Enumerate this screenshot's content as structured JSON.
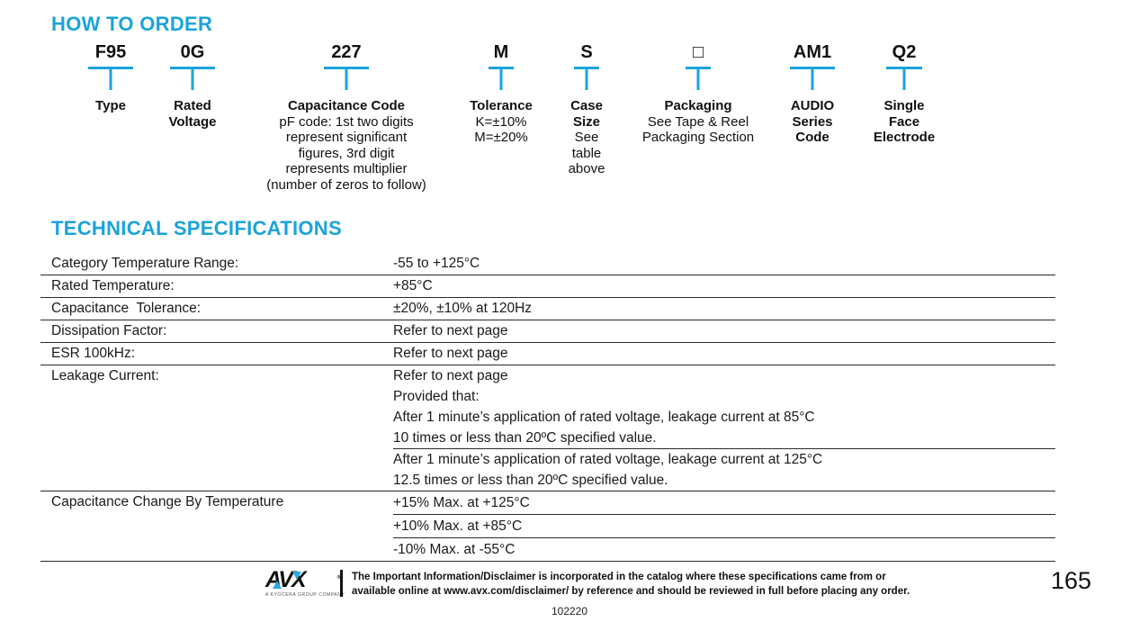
{
  "colors": {
    "accent_cyan": "#1ba3dc",
    "logo_cyan": "#29abe2",
    "text": "#1a1a1a"
  },
  "how_to_order": {
    "title": "HOW TO ORDER",
    "segments": [
      {
        "code": "F95",
        "bold_lines": [
          "Type"
        ],
        "detail_lines": []
      },
      {
        "code": "0G",
        "bold_lines": [
          "Rated",
          "Voltage"
        ],
        "detail_lines": []
      },
      {
        "code": "227",
        "bold_lines": [
          "Capacitance Code"
        ],
        "detail_lines": [
          "pF code: 1st two digits",
          "represent significant",
          "figures, 3rd digit",
          "represents multiplier",
          "(number of zeros to follow)"
        ]
      },
      {
        "code": "M",
        "bold_lines": [
          "Tolerance"
        ],
        "detail_lines": [
          "K=±10%",
          "M=±20%"
        ]
      },
      {
        "code": "S",
        "bold_lines": [
          "Case",
          "Size"
        ],
        "detail_lines": [
          "See",
          "table",
          "above"
        ]
      },
      {
        "code": "□",
        "bold_lines": [
          "Packaging"
        ],
        "detail_lines": [
          "See Tape & Reel",
          "Packaging Section"
        ]
      },
      {
        "code": "AM1",
        "bold_lines": [
          "AUDIO",
          "Series",
          "Code"
        ],
        "detail_lines": []
      },
      {
        "code": "Q2",
        "bold_lines": [
          "Single",
          "Face",
          "Electrode"
        ],
        "detail_lines": []
      }
    ]
  },
  "technical_specifications": {
    "title": "TECHNICAL SPECIFICATIONS",
    "rows": [
      {
        "label": "Category Temperature Range:",
        "value": "-55 to +125°C"
      },
      {
        "label": "Rated Temperature:",
        "value": "+85°C"
      },
      {
        "label": "Capacitance  Tolerance:",
        "value": "±20%, ±10% at 120Hz"
      },
      {
        "label": "Dissipation Factor:",
        "value": "Refer to next page"
      },
      {
        "label": "ESR 100kHz:",
        "value": "Refer to next page"
      },
      {
        "label": "Leakage Current:",
        "value_block_1": [
          "Refer to next page",
          "Provided that:",
          "After 1 minute’s application of rated voltage, leakage current at 85°C",
          "10 times or less than 20ºC specified value."
        ],
        "value_block_2": [
          "After 1 minute’s application of rated voltage, leakage current at 125°C",
          "12.5 times or less than 20ºC specified value."
        ]
      },
      {
        "label": "Capacitance Change By Temperature",
        "values": [
          "+15% Max. at +125°C",
          "+10% Max. at +85°C",
          "-10% Max. at -55°C"
        ]
      }
    ]
  },
  "footer": {
    "logo": {
      "brand": "AVX",
      "registered_mark": "®",
      "tagline": "A KYOCERA GROUP COMPANY"
    },
    "disclaimer_lines": [
      "The Important Information/Disclaimer is incorporated in the catalog where these specifications came from or",
      "available online at www.avx.com/disclaimer/ by reference and should be reviewed in full before placing any order."
    ],
    "page_number": "165",
    "doc_number": "102220"
  }
}
